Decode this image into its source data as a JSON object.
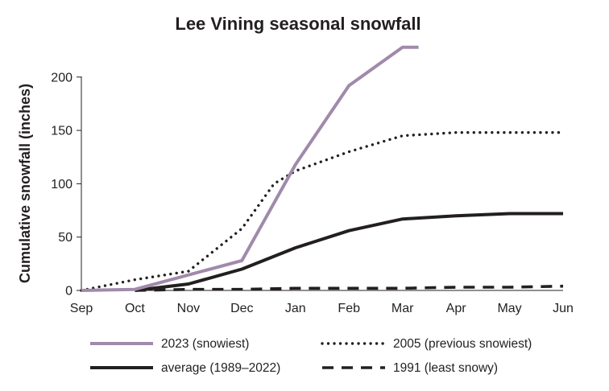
{
  "chart_data": {
    "type": "line",
    "title": "Lee Vining seasonal snowfall",
    "xlabel": "",
    "ylabel": "Cumulative snowfall (inches)",
    "x_categories": [
      "Sep",
      "Oct",
      "Nov",
      "Dec",
      "Jan",
      "Feb",
      "Mar",
      "Apr",
      "May",
      "Jun"
    ],
    "ylim": [
      0,
      230
    ],
    "yticks": [
      0,
      50,
      100,
      150,
      200
    ],
    "grid": false,
    "legend_position": "bottom",
    "series": [
      {
        "name": "2023 (snowiest)",
        "color": "#a08aaa",
        "style": "solid",
        "x": [
          0,
          1,
          3,
          4,
          5,
          6,
          6.3
        ],
        "y": [
          0,
          1,
          28,
          118,
          192,
          228,
          228
        ]
      },
      {
        "name": "2005 (previous snowiest)",
        "color": "#231f20",
        "style": "dotted",
        "x": [
          0,
          1,
          2,
          3,
          3.6,
          4,
          5,
          6,
          7,
          8,
          9
        ],
        "y": [
          0,
          10,
          18,
          58,
          100,
          112,
          130,
          145,
          148,
          148,
          148
        ]
      },
      {
        "name": "average (1989–2022)",
        "color": "#231f20",
        "style": "solid-thick",
        "x": [
          1,
          2,
          3,
          4,
          5,
          6,
          7,
          8,
          9
        ],
        "y": [
          0,
          6,
          20,
          40,
          56,
          67,
          70,
          72,
          72
        ]
      },
      {
        "name": "1991 (least snowy)",
        "color": "#231f20",
        "style": "dashed",
        "x": [
          1,
          2,
          3,
          4,
          5,
          6,
          7,
          8,
          9
        ],
        "y": [
          0,
          1,
          1,
          2,
          2,
          2,
          3,
          3,
          4
        ]
      }
    ]
  }
}
